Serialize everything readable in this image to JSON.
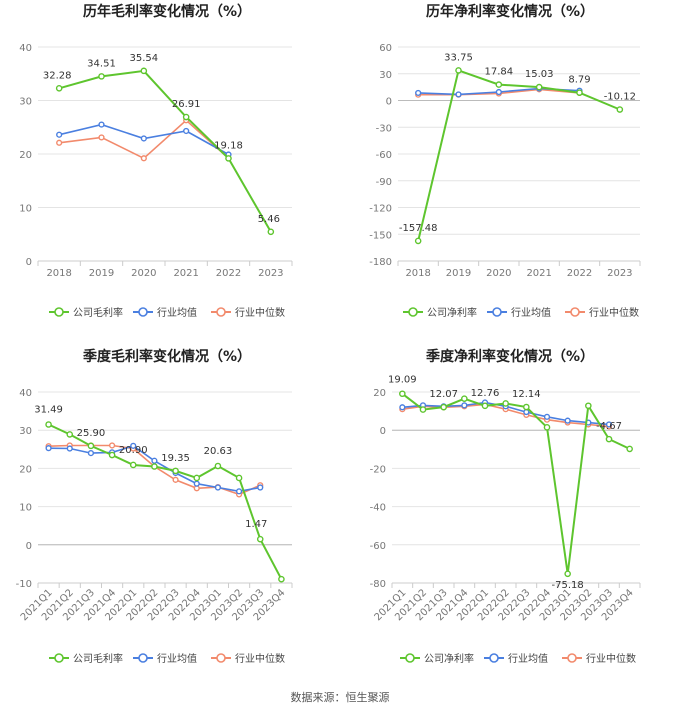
{
  "colors": {
    "company": "#5ec52e",
    "avg": "#4a7fe0",
    "median": "#f28a6c",
    "axis_text": "#777777",
    "grid": "#e4e4e4",
    "title": "#222222"
  },
  "source": "数据来源：恒生聚源",
  "chart_data": [
    {
      "type": "line",
      "title": "历年毛利率变化情况（%）",
      "categories": [
        "2018",
        "2019",
        "2020",
        "2021",
        "2022",
        "2023"
      ],
      "ylim": [
        0,
        40
      ],
      "yticks": [
        0,
        10,
        20,
        30,
        40
      ],
      "legend_position": "bottom",
      "series": [
        {
          "name": "公司毛利率",
          "role": "company",
          "values": [
            32.28,
            34.51,
            35.54,
            26.91,
            19.18,
            5.46
          ],
          "labels": [
            "32.28",
            "34.51",
            "35.54",
            "26.91",
            "19.18",
            "5.46"
          ]
        },
        {
          "name": "行业均值",
          "role": "avg",
          "values": [
            23.6,
            25.5,
            22.9,
            24.3,
            19.9,
            null
          ]
        },
        {
          "name": "行业中位数",
          "role": "median",
          "values": [
            22.1,
            23.1,
            19.2,
            26.3,
            19.2,
            null
          ]
        }
      ]
    },
    {
      "type": "line",
      "title": "历年净利率变化情况（%）",
      "categories": [
        "2018",
        "2019",
        "2020",
        "2021",
        "2022",
        "2023"
      ],
      "ylim": [
        -180,
        60
      ],
      "yticks": [
        -180,
        -150,
        -120,
        -90,
        -60,
        -30,
        0,
        30,
        60
      ],
      "legend_position": "bottom",
      "series": [
        {
          "name": "公司净利率",
          "role": "company",
          "values": [
            -157.48,
            33.75,
            17.84,
            15.03,
            8.79,
            -10.12
          ],
          "labels": [
            "-157.48",
            "33.75",
            "17.84",
            "15.03",
            "8.79",
            "-10.12"
          ]
        },
        {
          "name": "行业均值",
          "role": "avg",
          "values": [
            8.5,
            6.8,
            9.5,
            13.5,
            11.0,
            null
          ]
        },
        {
          "name": "行业中位数",
          "role": "median",
          "values": [
            6.5,
            6.5,
            7.8,
            12.5,
            8.5,
            null
          ]
        }
      ]
    },
    {
      "type": "line",
      "title": "季度毛利率变化情况（%）",
      "categories": [
        "2021Q1",
        "2021Q2",
        "2021Q3",
        "2021Q4",
        "2022Q1",
        "2022Q2",
        "2022Q3",
        "2022Q4",
        "2023Q1",
        "2023Q2",
        "2023Q3",
        "2023Q4"
      ],
      "ylim": [
        -10,
        40
      ],
      "yticks": [
        -10,
        0,
        10,
        20,
        30,
        40
      ],
      "legend_position": "bottom",
      "series": [
        {
          "name": "公司毛利率",
          "role": "company",
          "values": [
            31.49,
            28.9,
            25.9,
            23.5,
            20.9,
            20.5,
            19.35,
            17.5,
            20.63,
            17.5,
            1.47,
            -9.0
          ],
          "labels": [
            "31.49",
            "",
            "25.90",
            "",
            "20.90",
            "",
            "19.35",
            "",
            "20.63",
            "",
            "1.47",
            ""
          ]
        },
        {
          "name": "行业均值",
          "role": "avg",
          "values": [
            25.3,
            25.2,
            24.0,
            24.2,
            25.9,
            22.0,
            18.8,
            16.0,
            15.0,
            14.0,
            15.0,
            null
          ]
        },
        {
          "name": "行业中位数",
          "role": "median",
          "values": [
            25.8,
            26.0,
            26.0,
            26.0,
            25.2,
            20.5,
            17.0,
            14.8,
            15.1,
            13.2,
            15.6,
            null
          ]
        }
      ]
    },
    {
      "type": "line",
      "title": "季度净利率变化情况（%）",
      "categories": [
        "2021Q1",
        "2021Q2",
        "2021Q3",
        "2021Q4",
        "2022Q1",
        "2022Q2",
        "2022Q3",
        "2022Q4",
        "2023Q1",
        "2023Q2",
        "2023Q3",
        "2023Q4"
      ],
      "ylim": [
        -80,
        20
      ],
      "yticks": [
        -80,
        -60,
        -40,
        -20,
        0,
        20
      ],
      "legend_position": "bottom",
      "series": [
        {
          "name": "公司净利率",
          "role": "company",
          "values": [
            19.09,
            10.8,
            12.07,
            16.5,
            12.76,
            14.0,
            12.14,
            1.5,
            -75.18,
            12.8,
            -4.67,
            -9.8
          ],
          "labels": [
            "19.09",
            "",
            "12.07",
            "",
            "12.76",
            "",
            "12.14",
            "",
            "-75.18",
            "",
            "-4.67",
            ""
          ]
        },
        {
          "name": "行业均值",
          "role": "avg",
          "values": [
            12.0,
            13.0,
            12.5,
            13.0,
            14.5,
            12.5,
            9.5,
            7.0,
            5.0,
            4.0,
            3.0,
            null
          ]
        },
        {
          "name": "行业中位数",
          "role": "median",
          "values": [
            11.0,
            12.5,
            12.0,
            12.5,
            13.5,
            11.0,
            8.0,
            5.5,
            4.0,
            3.0,
            2.0,
            null
          ]
        }
      ]
    }
  ]
}
